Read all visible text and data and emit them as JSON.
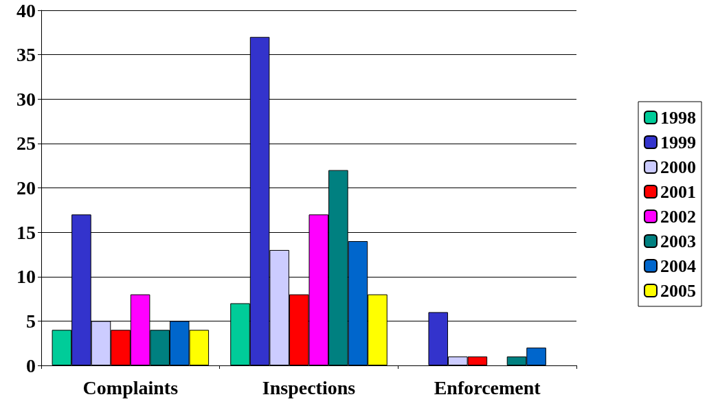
{
  "chart_data": {
    "type": "bar",
    "categories": [
      "Complaints",
      "Inspections",
      "Enforcement"
    ],
    "series": [
      {
        "name": "1998",
        "color": "#00cc99",
        "values": [
          4,
          7,
          0
        ]
      },
      {
        "name": "1999",
        "color": "#3333cc",
        "values": [
          17,
          37,
          6
        ]
      },
      {
        "name": "2000",
        "color": "#ccccff",
        "values": [
          5,
          13,
          1
        ]
      },
      {
        "name": "2001",
        "color": "#ff0000",
        "values": [
          4,
          8,
          1
        ]
      },
      {
        "name": "2002",
        "color": "#ff00ff",
        "values": [
          8,
          17,
          0
        ]
      },
      {
        "name": "2003",
        "color": "#008080",
        "values": [
          4,
          22,
          1
        ]
      },
      {
        "name": "2004",
        "color": "#0066cc",
        "values": [
          5,
          14,
          2
        ]
      },
      {
        "name": "2005",
        "color": "#ffff00",
        "values": [
          4,
          8,
          0
        ]
      }
    ],
    "ylim": [
      0,
      40
    ],
    "yticks": [
      0,
      5,
      10,
      15,
      20,
      25,
      30,
      35,
      40
    ],
    "grid": "y",
    "legend": "right"
  }
}
